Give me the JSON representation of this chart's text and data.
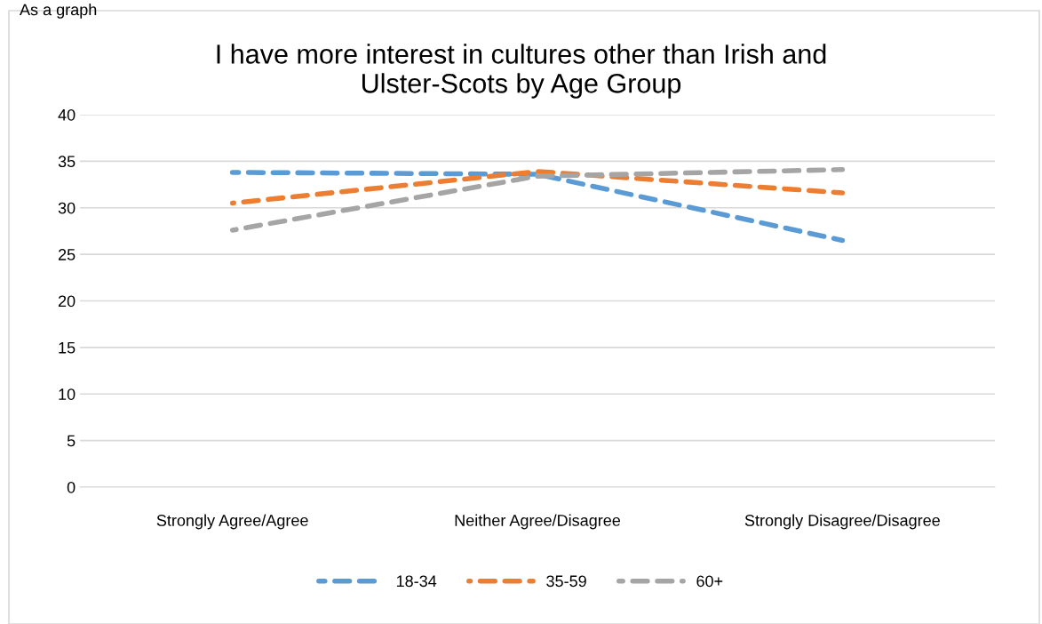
{
  "chart_data": {
    "type": "line",
    "title": "I have more interest in cultures other than Irish and\nUlster-Scots by Age Group",
    "annotations": [
      "As a graph"
    ],
    "categories": [
      "Strongly Agree/Agree",
      "Neither Agree/Disagree",
      "Strongly Disagree/Disagree"
    ],
    "series": [
      {
        "name": "18-34",
        "color": "#5b9bd5",
        "values": [
          33.8,
          33.6,
          26.5
        ]
      },
      {
        "name": "35-59",
        "color": "#ed7d31",
        "values": [
          30.5,
          33.9,
          31.6
        ]
      },
      {
        "name": "60+",
        "color": "#a5a5a5",
        "values": [
          27.6,
          33.4,
          34.1
        ]
      }
    ],
    "ylim": [
      0,
      40
    ],
    "yticks": [
      0,
      5,
      10,
      15,
      20,
      25,
      30,
      35,
      40
    ],
    "grid": "y",
    "legend": "bottom",
    "line_style": "dashed",
    "marker": "none"
  }
}
